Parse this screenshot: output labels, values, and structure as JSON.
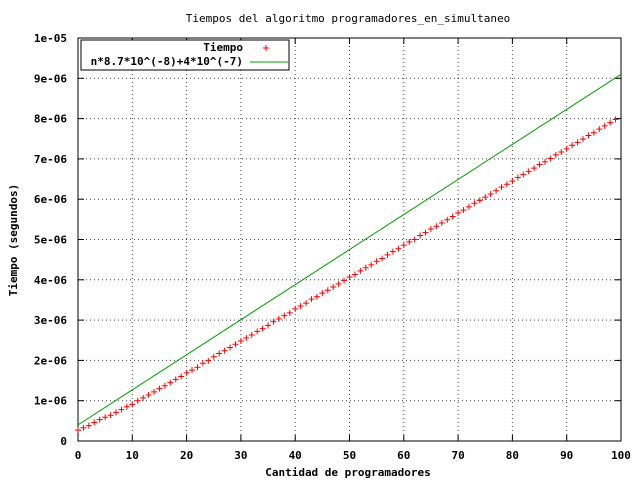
{
  "chart_data": {
    "type": "scatter",
    "title": "Tiempos del algoritmo programadores_en_simultaneo",
    "xlabel": "Cantidad de programadores",
    "ylabel": "Tiempo (segundos)",
    "xlim": [
      0,
      100
    ],
    "ylim": [
      0,
      1e-05
    ],
    "x_ticks": [
      0,
      10,
      20,
      30,
      40,
      50,
      60,
      70,
      80,
      90,
      100
    ],
    "x_tick_labels": [
      "0",
      "10",
      "20",
      "30",
      "40",
      "50",
      "60",
      "70",
      "80",
      "90",
      "100"
    ],
    "y_ticks": [
      0,
      1e-06,
      2e-06,
      3e-06,
      4e-06,
      5e-06,
      6e-06,
      7e-06,
      8e-06,
      9e-06,
      1e-05
    ],
    "y_tick_labels": [
      "0",
      "1e-06",
      "2e-06",
      "3e-06",
      "4e-06",
      "5e-06",
      "6e-06",
      "7e-06",
      "8e-06",
      "9e-06",
      "1e-05"
    ],
    "grid": true,
    "legend_position": "top-left",
    "series": [
      {
        "name": "Tiempo",
        "kind": "points",
        "marker": "+",
        "color": "#ff0000",
        "x": [
          0,
          1,
          2,
          3,
          4,
          5,
          6,
          7,
          8,
          9,
          10,
          11,
          12,
          13,
          14,
          15,
          16,
          17,
          18,
          19,
          20,
          21,
          22,
          23,
          24,
          25,
          26,
          27,
          28,
          29,
          30,
          31,
          32,
          33,
          34,
          35,
          36,
          37,
          38,
          39,
          40,
          41,
          42,
          43,
          44,
          45,
          46,
          47,
          48,
          49,
          50,
          51,
          52,
          53,
          54,
          55,
          56,
          57,
          58,
          59,
          60,
          61,
          62,
          63,
          64,
          65,
          66,
          67,
          68,
          69,
          70,
          71,
          72,
          73,
          74,
          75,
          76,
          77,
          78,
          79,
          80,
          81,
          82,
          83,
          84,
          85,
          86,
          87,
          88,
          89,
          90,
          91,
          92,
          93,
          94,
          95,
          96,
          97,
          98,
          99
        ],
        "y": [
          2.7e-07,
          3.3e-07,
          3.8e-07,
          4.6e-07,
          5.3e-07,
          5.9e-07,
          6.4e-07,
          7.1e-07,
          7.8e-07,
          8.5e-07,
          9.1e-07,
          1e-06,
          1.07e-06,
          1.14e-06,
          1.22e-06,
          1.3e-06,
          1.37e-06,
          1.45e-06,
          1.53e-06,
          1.6e-06,
          1.69e-06,
          1.76e-06,
          1.83e-06,
          1.93e-06,
          1.99e-06,
          2.09e-06,
          2.17e-06,
          2.24e-06,
          2.32e-06,
          2.4e-06,
          2.48e-06,
          2.56e-06,
          2.63e-06,
          2.72e-06,
          2.79e-06,
          2.87e-06,
          2.96e-06,
          3.03e-06,
          3.11e-06,
          3.18e-06,
          3.28e-06,
          3.35e-06,
          3.42e-06,
          3.52e-06,
          3.58e-06,
          3.67e-06,
          3.74e-06,
          3.82e-06,
          3.9e-06,
          3.98e-06,
          4.07e-06,
          4.13e-06,
          4.22e-06,
          4.3e-06,
          4.37e-06,
          4.46e-06,
          4.53e-06,
          4.62e-06,
          4.7e-06,
          4.77e-06,
          4.86e-06,
          4.94e-06,
          5e-06,
          5.1e-06,
          5.17e-06,
          5.26e-06,
          5.33e-06,
          5.41e-06,
          5.49e-06,
          5.57e-06,
          5.66e-06,
          5.73e-06,
          5.81e-06,
          5.9e-06,
          5.97e-06,
          6.05e-06,
          6.13e-06,
          6.21e-06,
          6.3e-06,
          6.37e-06,
          6.45e-06,
          6.54e-06,
          6.61e-06,
          6.69e-06,
          6.77e-06,
          6.86e-06,
          6.93e-06,
          7.01e-06,
          7.1e-06,
          7.17e-06,
          7.25e-06,
          7.34e-06,
          7.41e-06,
          7.49e-06,
          7.58e-06,
          7.65e-06,
          7.74e-06,
          7.82e-06,
          7.9e-06,
          7.98e-06
        ]
      },
      {
        "name": "n*8.7*10^(-8)+4*10^(-7)",
        "kind": "line",
        "color": "#00a000",
        "x": [
          0,
          100
        ],
        "y": [
          4e-07,
          9.1e-06
        ]
      }
    ]
  }
}
